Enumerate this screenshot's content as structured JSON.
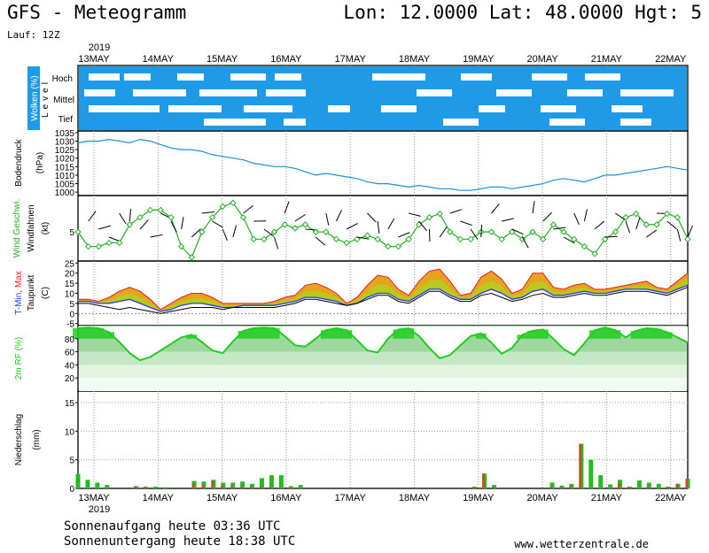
{
  "header": {
    "title": "GFS - Meteogramm",
    "coords": "Lon: 12.0000 Lat: 48.0000 Hgt: 5",
    "run": "Lauf: 12Z"
  },
  "footer": {
    "sunrise": "Sonnenaufgang heute 03:36 UTC",
    "sunset": "Sonnenuntergang heute 18:38 UTC",
    "site": "www.wetterzentrale.de"
  },
  "colors": {
    "cloud": "#1e9ae6",
    "pressure": "#1e90d8",
    "wind_line": "#22b022",
    "wind_marker": "#22b022",
    "temp_min": "#1e3ce6",
    "temp_max": "#e61e1e",
    "temp_fill": "#e8a31e",
    "temp_fill_low": "#a8d820",
    "dewpoint": "#000000",
    "humidity_band": "#22cc22",
    "precip_rain": "#22bb22",
    "precip_conv": "#e0401e"
  },
  "chart_data": [
    {
      "type": "area",
      "panel": "clouds",
      "ylabel": "Wolken (%)",
      "ylabel2": "Level",
      "levels": [
        "Hoch",
        "Mittel",
        "Tief"
      ],
      "x": [
        "13MAY",
        "14MAY",
        "15MAY",
        "16MAY",
        "17MAY",
        "18MAY",
        "19MAY",
        "20MAY",
        "21MAY",
        "22MAY"
      ],
      "year": "2019"
    },
    {
      "type": "line",
      "panel": "pressure",
      "ylabel": "Bodendruck",
      "unit": "(hPa)",
      "yticks": [
        1000,
        1005,
        1010,
        1015,
        1020,
        1025,
        1030,
        1035
      ],
      "ylim": [
        998,
        1036
      ],
      "values": [
        1029,
        1030,
        1030,
        1031,
        1030,
        1029,
        1031,
        1030,
        1028,
        1026,
        1025,
        1025,
        1024,
        1022,
        1021,
        1020,
        1019,
        1017,
        1016,
        1015,
        1015,
        1014,
        1012,
        1010,
        1011,
        1010,
        1009,
        1008,
        1006,
        1005,
        1005,
        1004,
        1003,
        1004,
        1003,
        1002,
        1002,
        1001,
        1001,
        1002,
        1003,
        1003,
        1002,
        1003,
        1004,
        1005,
        1007,
        1008,
        1007,
        1006,
        1008,
        1010,
        1010,
        1011,
        1012,
        1013,
        1014,
        1015,
        1014,
        1013
      ]
    },
    {
      "type": "line",
      "panel": "wind",
      "ylabel": "Wind Geschwi.",
      "ylabel2": "Windfahnen",
      "unit": "(kt)",
      "yticks": [
        5
      ],
      "ylim": [
        1,
        10
      ],
      "values": [
        5,
        3,
        3,
        3.5,
        3.5,
        6,
        7,
        8,
        8,
        7,
        3,
        1.5,
        5,
        7,
        8.5,
        9,
        7,
        4,
        4,
        5,
        6,
        5.5,
        6,
        5,
        5,
        4,
        3.5,
        4,
        4.5,
        4,
        3,
        3,
        4,
        6,
        7,
        7.5,
        5,
        4,
        4,
        5,
        5,
        4,
        5,
        4,
        5,
        4,
        6,
        5,
        4,
        3,
        2,
        4,
        5,
        7,
        7.5,
        6,
        6,
        7.5,
        7,
        4
      ]
    },
    {
      "type": "line",
      "panel": "temperature",
      "ylabel": "T-Min, Max",
      "ylabel2": "Taupunkt",
      "unit": "(C)",
      "yticks": [
        -5,
        0,
        5,
        10,
        15,
        20,
        25
      ],
      "ylim": [
        -6,
        26
      ],
      "series": [
        {
          "name": "T-Max",
          "values": [
            7,
            7,
            6,
            8,
            11,
            13,
            11,
            7,
            2,
            5,
            8,
            10,
            10,
            8,
            5,
            5,
            5,
            5,
            5,
            6,
            8,
            9,
            14,
            15,
            13,
            10,
            5,
            8,
            14,
            19,
            18,
            12,
            9,
            16,
            21,
            22,
            16,
            9,
            10,
            18,
            21,
            17,
            10,
            12,
            20,
            20,
            13,
            12,
            14,
            15,
            12,
            12,
            13,
            14,
            15,
            16,
            13,
            12,
            16,
            20
          ]
        },
        {
          "name": "T-Min",
          "values": [
            6,
            6,
            5,
            5,
            6,
            7,
            5,
            3,
            1,
            2,
            4,
            5,
            5,
            4,
            3,
            3,
            4,
            4,
            4,
            4,
            5,
            6,
            8,
            8,
            7,
            6,
            4,
            5,
            8,
            10,
            10,
            7,
            6,
            9,
            12,
            12,
            9,
            7,
            7,
            10,
            12,
            10,
            7,
            8,
            11,
            12,
            9,
            9,
            10,
            11,
            10,
            10,
            11,
            12,
            12,
            12,
            11,
            10,
            12,
            14
          ]
        },
        {
          "name": "Taupunkt",
          "values": [
            5,
            5,
            4,
            3,
            2,
            3,
            2,
            1,
            0,
            1,
            2,
            3,
            3,
            3,
            2,
            3,
            3,
            3,
            3,
            3,
            4,
            5,
            7,
            7,
            6,
            5,
            4,
            5,
            7,
            9,
            9,
            6,
            5,
            8,
            11,
            11,
            8,
            6,
            6,
            9,
            10,
            8,
            6,
            7,
            9,
            10,
            8,
            8,
            9,
            10,
            9,
            9,
            10,
            11,
            11,
            11,
            10,
            9,
            11,
            13
          ]
        }
      ]
    },
    {
      "type": "area",
      "panel": "humidity",
      "ylabel": "2m RF (%)",
      "yticks": [
        20,
        40,
        60,
        80
      ],
      "ylim": [
        0,
        100
      ],
      "values": [
        96,
        97,
        96,
        90,
        75,
        58,
        47,
        52,
        62,
        72,
        82,
        86,
        75,
        62,
        58,
        76,
        92,
        96,
        97,
        96,
        84,
        70,
        68,
        80,
        93,
        96,
        93,
        78,
        62,
        59,
        80,
        94,
        96,
        84,
        66,
        50,
        55,
        70,
        84,
        88,
        74,
        57,
        66,
        86,
        92,
        94,
        80,
        64,
        55,
        73,
        93,
        97,
        93,
        82,
        92,
        96,
        95,
        90,
        82,
        74
      ]
    },
    {
      "type": "bar",
      "panel": "precipitation",
      "ylabel": "Niederschlag",
      "unit": "(mm)",
      "yticks": [
        0,
        5,
        10,
        15
      ],
      "ylim": [
        0,
        17
      ],
      "series": [
        {
          "name": "total",
          "values": [
            2.5,
            1.5,
            1,
            0.6,
            0,
            0,
            0.4,
            0.3,
            0.3,
            0.2,
            0,
            0,
            1.3,
            1.2,
            1.5,
            1,
            1,
            1.2,
            0.8,
            1.8,
            2.3,
            2.3,
            0.4,
            0.6,
            0,
            0,
            0,
            0,
            0,
            0,
            0,
            0,
            0,
            0,
            0,
            0,
            0,
            0,
            0,
            0,
            0,
            0.3,
            2.6,
            0.6,
            0,
            0,
            0,
            0,
            0,
            1,
            0.5,
            0.8,
            7.8,
            5,
            2.3,
            0.7,
            1.5,
            0.3,
            1.4,
            1,
            0.8,
            0.3,
            0.8,
            1.7
          ]
        },
        {
          "name": "convective",
          "values": [
            0,
            0,
            0,
            0,
            0,
            0,
            0.4,
            0.3,
            0,
            0,
            0,
            0,
            0.8,
            0.7,
            1.3,
            0.5,
            0.4,
            0.3,
            0.3,
            0.3,
            0.3,
            0,
            0.2,
            0,
            0,
            0,
            0,
            0,
            0,
            0,
            0,
            0,
            0,
            0,
            0,
            0,
            0,
            0,
            0,
            0,
            0,
            0.3,
            2.6,
            0.3,
            0,
            0,
            0,
            0,
            0,
            0.3,
            0.3,
            0.5,
            7.8,
            0,
            0,
            0,
            0.9,
            0.3,
            0,
            0.3,
            0,
            0.3,
            0.8,
            1.7
          ]
        }
      ]
    }
  ]
}
